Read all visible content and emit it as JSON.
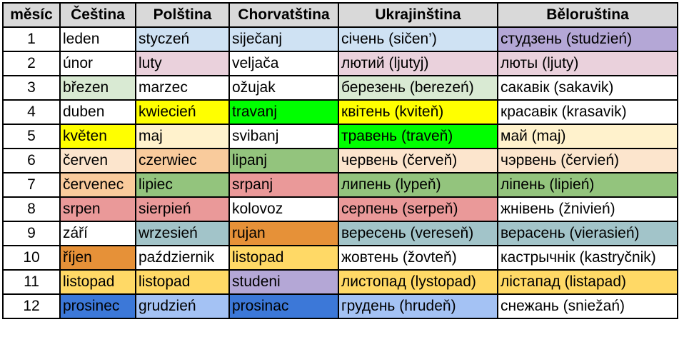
{
  "colors": {
    "header": "#d9d9d9",
    "white": "#ffffff",
    "light_blue": "#cfe2f3",
    "lavender": "#b4a7d6",
    "pink": "#ead1dc",
    "light_green": "#d9ead3",
    "yellow": "#ffff00",
    "bright_green": "#00ff00",
    "peach": "#fce5cd",
    "light_orange": "#f9cb9c",
    "green": "#93c47d",
    "salmon": "#ea9999",
    "grey_blue": "#a2c4c9",
    "orange": "#e69138",
    "gold": "#ffd966",
    "blue": "#3c78d8",
    "cornflower": "#a4c2f4"
  },
  "table": {
    "headers": [
      "měsíc",
      "Čeština",
      "Polština",
      "Chorvatština",
      "Ukrajinština",
      "Běloruština"
    ],
    "rows": [
      {
        "num": "1",
        "cells": [
          {
            "text": "leden",
            "bg": "#ffffff"
          },
          {
            "text": "styczeń",
            "bg": "#cfe2f3"
          },
          {
            "text": "siječanj",
            "bg": "#cfe2f3"
          },
          {
            "text": "січень (sičen’)",
            "bg": "#cfe2f3"
          },
          {
            "text": "студзень (studzień)",
            "bg": "#b4a7d6"
          }
        ]
      },
      {
        "num": "2",
        "cells": [
          {
            "text": "únor",
            "bg": "#ffffff"
          },
          {
            "text": "luty",
            "bg": "#ead1dc"
          },
          {
            "text": "veljača",
            "bg": "#ffffff"
          },
          {
            "text": "лютий (ljutyj)",
            "bg": "#ead1dc"
          },
          {
            "text": "люты (ljuty)",
            "bg": "#ead1dc"
          }
        ]
      },
      {
        "num": "3",
        "cells": [
          {
            "text": "březen",
            "bg": "#d9ead3"
          },
          {
            "text": "marzec",
            "bg": "#ffffff"
          },
          {
            "text": "ožujak",
            "bg": "#ffffff"
          },
          {
            "text": "березень (berezeń)",
            "bg": "#d9ead3"
          },
          {
            "text": "сакавік (sakavik)",
            "bg": "#ffffff"
          }
        ]
      },
      {
        "num": "4",
        "cells": [
          {
            "text": "duben",
            "bg": "#ffffff"
          },
          {
            "text": "kwiecień",
            "bg": "#ffff00"
          },
          {
            "text": "travanj",
            "bg": "#00ff00"
          },
          {
            "text": "квітень (kviteň)",
            "bg": "#ffff00"
          },
          {
            "text": "красавік (krasavik)",
            "bg": "#ffffff"
          }
        ]
      },
      {
        "num": "5",
        "cells": [
          {
            "text": "květen",
            "bg": "#ffff00"
          },
          {
            "text": "maj",
            "bg": "#fff2cc"
          },
          {
            "text": "svibanj",
            "bg": "#ffffff"
          },
          {
            "text": "травень (traveň)",
            "bg": "#00ff00"
          },
          {
            "text": "май (maj)",
            "bg": "#fff2cc"
          }
        ]
      },
      {
        "num": "6",
        "cells": [
          {
            "text": "červen",
            "bg": "#fce5cd"
          },
          {
            "text": "czerwiec",
            "bg": "#f9cb9c"
          },
          {
            "text": "lipanj",
            "bg": "#93c47d"
          },
          {
            "text": "червень (červeň)",
            "bg": "#fce5cd"
          },
          {
            "text": "чэрвень (červień)",
            "bg": "#fce5cd"
          }
        ]
      },
      {
        "num": "7",
        "cells": [
          {
            "text": "červenec",
            "bg": "#f9cb9c"
          },
          {
            "text": "lipiec",
            "bg": "#93c47d"
          },
          {
            "text": "srpanj",
            "bg": "#ea9999"
          },
          {
            "text": "липень (lypeň)",
            "bg": "#93c47d"
          },
          {
            "text": "ліпень (lipień)",
            "bg": "#93c47d"
          }
        ]
      },
      {
        "num": "8",
        "cells": [
          {
            "text": "srpen",
            "bg": "#ea9999"
          },
          {
            "text": "sierpień",
            "bg": "#ea9999"
          },
          {
            "text": "kolovoz",
            "bg": "#ffffff"
          },
          {
            "text": "серпень (serpeň)",
            "bg": "#ea9999"
          },
          {
            "text": "жнівень (žnivień)",
            "bg": "#ffffff"
          }
        ]
      },
      {
        "num": "9",
        "cells": [
          {
            "text": "září",
            "bg": "#ffffff"
          },
          {
            "text": "wrzesień",
            "bg": "#a2c4c9"
          },
          {
            "text": "rujan",
            "bg": "#e69138"
          },
          {
            "text": "вересень (vereseň)",
            "bg": "#a2c4c9"
          },
          {
            "text": "верасень (vierasień)",
            "bg": "#a2c4c9"
          }
        ]
      },
      {
        "num": "10",
        "cells": [
          {
            "text": "říjen",
            "bg": "#e69138"
          },
          {
            "text": "październik",
            "bg": "#ffffff"
          },
          {
            "text": "listopad",
            "bg": "#ffd966"
          },
          {
            "text": "жовтень (žovteň)",
            "bg": "#ffffff"
          },
          {
            "text": "кастрычнік (kastryčnik)",
            "bg": "#ffffff"
          }
        ]
      },
      {
        "num": "11",
        "cells": [
          {
            "text": "listopad",
            "bg": "#ffd966"
          },
          {
            "text": "listopad",
            "bg": "#ffd966"
          },
          {
            "text": "studeni",
            "bg": "#b4a7d6"
          },
          {
            "text": "листопад (lystopad)",
            "bg": "#ffd966"
          },
          {
            "text": "лістапад (listapad)",
            "bg": "#ffd966"
          }
        ]
      },
      {
        "num": "12",
        "cells": [
          {
            "text": "prosinec",
            "bg": "#3c78d8"
          },
          {
            "text": "grudzień",
            "bg": "#a4c2f4"
          },
          {
            "text": "prosinac",
            "bg": "#3c78d8"
          },
          {
            "text": "грудень (hrudeň)",
            "bg": "#a4c2f4"
          },
          {
            "text": "снежань (sniežań)",
            "bg": "#ffffff"
          }
        ]
      }
    ]
  }
}
